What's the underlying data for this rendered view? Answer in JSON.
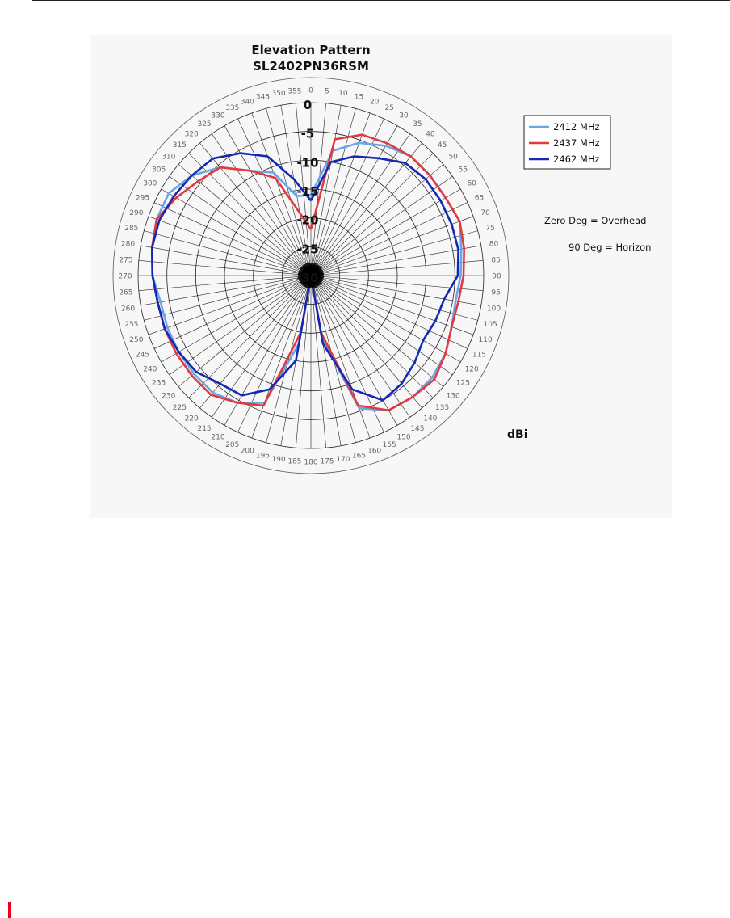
{
  "chart_data": {
    "type": "polar-line",
    "title": "Elevation Pattern",
    "subtitle": "SL2402PN36RSM",
    "angle_unit": "deg",
    "radial_unit_label": "dBi",
    "radial_range": [
      -30,
      0
    ],
    "radial_ticks": [
      "0",
      "-5",
      "-10",
      "-15",
      "-20",
      "-25",
      "-30"
    ],
    "angular_ticks": [
      "0",
      "5",
      "10",
      "15",
      "20",
      "25",
      "30",
      "35",
      "40",
      "45",
      "50",
      "55",
      "60",
      "65",
      "70",
      "75",
      "80",
      "85",
      "90",
      "95",
      "100",
      "105",
      "110",
      "115",
      "120",
      "125",
      "130",
      "135",
      "140",
      "145",
      "150",
      "155",
      "160",
      "165",
      "170",
      "175",
      "180",
      "185",
      "190",
      "195",
      "200",
      "205",
      "210",
      "215",
      "220",
      "225",
      "230",
      "235",
      "240",
      "245",
      "250",
      "255",
      "260",
      "265",
      "270",
      "275",
      "280",
      "285",
      "290",
      "295",
      "300",
      "305",
      "310",
      "315",
      "320",
      "325",
      "330",
      "335",
      "340",
      "345",
      "350",
      "355"
    ],
    "annotations": [
      "Zero Deg = Overhead",
      "90 Deg = Horizon"
    ],
    "legend_position": "top-right",
    "grid": true,
    "angles": [
      0,
      10,
      20,
      30,
      40,
      50,
      60,
      70,
      80,
      90,
      100,
      110,
      120,
      130,
      140,
      150,
      160,
      170,
      180,
      190,
      200,
      210,
      220,
      230,
      240,
      250,
      260,
      270,
      280,
      290,
      300,
      310,
      320,
      330,
      340,
      350
    ],
    "series": [
      {
        "name": "2412 MHz",
        "color": "#6aa5e8",
        "values": [
          -16,
          -8,
          -5.5,
          -4,
          -3,
          -3,
          -3,
          -2.5,
          -3.5,
          -4,
          -4.5,
          -4,
          -3,
          -2.5,
          -2.5,
          -3,
          -5.5,
          -19,
          -30,
          -18,
          -6.5,
          -4.5,
          -3.5,
          -3.5,
          -3.5,
          -3.5,
          -3.5,
          -2.5,
          -2,
          -1.5,
          -1.5,
          -3,
          -5.5,
          -9,
          -11,
          -16
        ]
      },
      {
        "name": "2437 MHz",
        "color": "#e03a40",
        "values": [
          -22,
          -6,
          -4,
          -3.5,
          -3,
          -3,
          -3,
          -2.5,
          -3,
          -3.5,
          -4,
          -4,
          -3,
          -2,
          -2.5,
          -3,
          -6,
          -20,
          -30,
          -20,
          -6,
          -4.5,
          -3,
          -3,
          -3,
          -3,
          -3,
          -2.5,
          -2,
          -1.5,
          -3,
          -4.5,
          -5.5,
          -9,
          -12,
          -19
        ]
      },
      {
        "name": "2462 MHz",
        "color": "#1428b4",
        "values": [
          -17,
          -10,
          -8,
          -6.5,
          -4.5,
          -4,
          -4,
          -4,
          -4,
          -4.5,
          -6.5,
          -7,
          -7.5,
          -6.5,
          -5.5,
          -5,
          -9,
          -18,
          -30,
          -15,
          -9,
          -6,
          -5.5,
          -4,
          -3.5,
          -3,
          -3,
          -2.5,
          -2,
          -2,
          -2.5,
          -3,
          -3.5,
          -5.5,
          -8,
          -13
        ]
      }
    ]
  }
}
